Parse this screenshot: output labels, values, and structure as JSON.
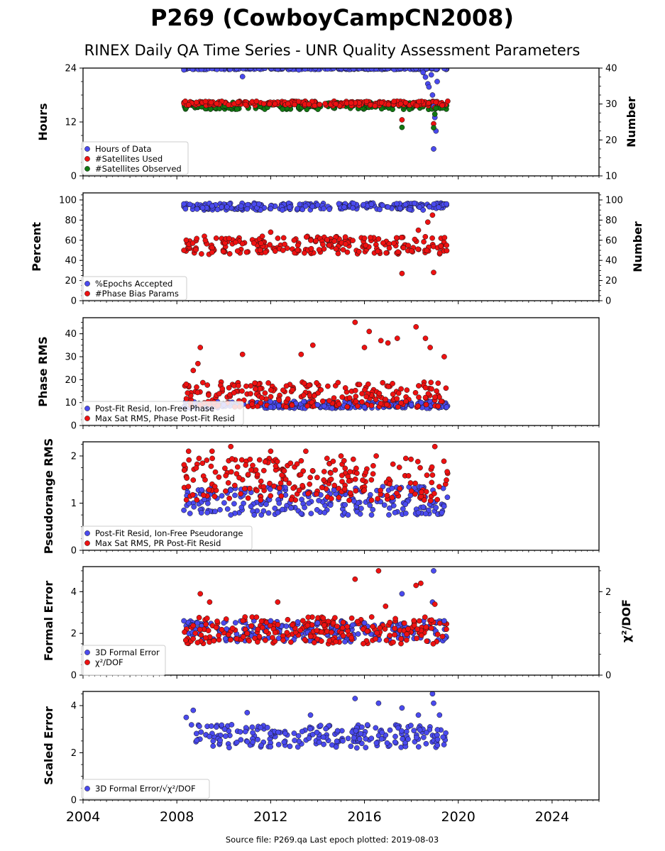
{
  "title": "P269 (CowboyCampCN2008)",
  "subtitle": "RINEX Daily QA Time Series - UNR Quality Assessment Parameters",
  "footer": "Source file: P269.qa Last epoch plotted: 2019-08-03",
  "colors": {
    "blue": "#4a4aee",
    "red": "#ee1111",
    "green": "#117711"
  },
  "x_ticks": [
    "2004",
    "2008",
    "2012",
    "2016",
    "2020",
    "2024"
  ],
  "chart_data": [
    {
      "type": "scatter",
      "ylabel": "Hours",
      "ylabel_right": "Number",
      "xlim": [
        2004,
        2026
      ],
      "ylim": [
        0,
        24
      ],
      "ylim_right": [
        10,
        40
      ],
      "yticks": [
        "0",
        "12",
        "24"
      ],
      "yticks_right": [
        "10",
        "20",
        "30",
        "40"
      ],
      "legend_position": "lower-left",
      "series": [
        {
          "name": "Hours of Data",
          "color": "blue",
          "axis": "left",
          "points": [
            [
              2008.3,
              23.6
            ],
            [
              2009.5,
              23.9
            ],
            [
              2010.8,
              22.1
            ],
            [
              2011.5,
              23.9
            ],
            [
              2013.2,
              23.6
            ],
            [
              2015.0,
              23.9
            ],
            [
              2017.0,
              23.9
            ],
            [
              2018.2,
              23.9
            ],
            [
              2018.5,
              23.0
            ],
            [
              2018.6,
              22.0
            ],
            [
              2018.7,
              20.5
            ],
            [
              2018.75,
              19.8
            ],
            [
              2018.85,
              22.5
            ],
            [
              2018.9,
              18.0
            ],
            [
              2018.95,
              15.5
            ],
            [
              2019.0,
              13.0
            ],
            [
              2019.05,
              10.0
            ],
            [
              2018.95,
              6.0
            ],
            [
              2019.1,
              21.0
            ],
            [
              2019.4,
              23.9
            ]
          ]
        },
        {
          "name": "#Satellites Used",
          "color": "red",
          "axis": "right",
          "points": [
            [
              2009.7,
              30.1
            ],
            [
              2017.6,
              25.6
            ],
            [
              2018.95,
              24.5
            ],
            [
              2019.0,
              29.0
            ],
            [
              2019.05,
              30.5
            ]
          ]
        },
        {
          "name": "#Satellites Observed",
          "color": "green",
          "axis": "right",
          "points": [
            [
              2017.6,
              23.5
            ],
            [
              2018.95,
              23.4
            ],
            [
              2019.0,
              27.2
            ],
            [
              2019.05,
              28.8
            ]
          ]
        }
      ]
    },
    {
      "type": "scatter",
      "ylabel": "Percent",
      "ylabel_right": "Number",
      "xlim": [
        2004,
        2026
      ],
      "ylim": [
        0,
        107
      ],
      "ylim_right": [
        0,
        107
      ],
      "yticks": [
        "0",
        "20",
        "40",
        "60",
        "80",
        "100"
      ],
      "yticks_right": [
        "0",
        "20",
        "40",
        "60",
        "80",
        "100"
      ],
      "legend_position": "lower-left",
      "series": [
        {
          "name": "%Epochs Accepted",
          "color": "blue",
          "axis": "left",
          "points": [
            [
              2008.3,
              96
            ],
            [
              2009.5,
              94
            ],
            [
              2011.0,
              91
            ],
            [
              2012.5,
              90
            ],
            [
              2014.0,
              95
            ],
            [
              2015.5,
              92
            ],
            [
              2017.0,
              93
            ],
            [
              2018.5,
              90
            ],
            [
              2019.5,
              96
            ]
          ]
        },
        {
          "name": "#Phase Bias Params",
          "color": "red",
          "axis": "right",
          "points": [
            [
              2008.3,
              50
            ],
            [
              2009.5,
              48
            ],
            [
              2010.5,
              58
            ],
            [
              2012.0,
              68
            ],
            [
              2013.0,
              60
            ],
            [
              2014.5,
              55
            ],
            [
              2016.0,
              62
            ],
            [
              2017.6,
              27
            ],
            [
              2018.3,
              70
            ],
            [
              2018.7,
              78
            ],
            [
              2018.9,
              85
            ],
            [
              2018.95,
              28
            ],
            [
              2019.5,
              55
            ]
          ]
        }
      ]
    },
    {
      "type": "scatter",
      "ylabel": "Phase RMS",
      "xlim": [
        2004,
        2026
      ],
      "ylim": [
        0,
        47
      ],
      "yticks": [
        "0",
        "10",
        "20",
        "30",
        "40"
      ],
      "legend_position": "lower-left",
      "series": [
        {
          "name": "Post-Fit Resid, Ion-Free Phase",
          "color": "blue",
          "points": [
            [
              2008.3,
              8
            ],
            [
              2010,
              9
            ],
            [
              2012,
              8
            ],
            [
              2014,
              9
            ],
            [
              2016,
              8
            ],
            [
              2018,
              9
            ],
            [
              2019.5,
              8
            ]
          ]
        },
        {
          "name": "Max Sat RMS, Phase Post-Fit Resid",
          "color": "red",
          "points": [
            [
              2008.4,
              18
            ],
            [
              2008.7,
              24
            ],
            [
              2008.9,
              27
            ],
            [
              2009.0,
              34
            ],
            [
              2010.8,
              31
            ],
            [
              2013.3,
              31
            ],
            [
              2013.8,
              35
            ],
            [
              2015.6,
              45
            ],
            [
              2016.0,
              34
            ],
            [
              2016.2,
              41
            ],
            [
              2016.7,
              37
            ],
            [
              2017.0,
              36
            ],
            [
              2017.4,
              38
            ],
            [
              2018.2,
              43
            ],
            [
              2018.6,
              38
            ],
            [
              2018.8,
              34
            ],
            [
              2019.4,
              30
            ]
          ]
        }
      ]
    },
    {
      "type": "scatter",
      "ylabel": "Pseudorange RMS",
      "xlim": [
        2004,
        2026
      ],
      "ylim": [
        0,
        2.3
      ],
      "yticks": [
        "0",
        "1",
        "2"
      ],
      "legend_position": "lower-left",
      "series": [
        {
          "name": "Post-Fit Resid, Ion-Free Pseudorange",
          "color": "blue",
          "points": [
            [
              2008.3,
              0.85
            ],
            [
              2009.3,
              0.8
            ],
            [
              2010.3,
              0.75
            ],
            [
              2011.3,
              0.75
            ],
            [
              2012.3,
              0.8
            ],
            [
              2013.3,
              0.78
            ],
            [
              2014.3,
              0.8
            ],
            [
              2015.3,
              0.75
            ],
            [
              2016.3,
              0.75
            ],
            [
              2017.3,
              0.8
            ],
            [
              2018.3,
              0.8
            ],
            [
              2019.3,
              0.8
            ]
          ]
        },
        {
          "name": "Max Sat RMS, PR Post-Fit Resid",
          "color": "red",
          "points": [
            [
              2008.5,
              2.1
            ],
            [
              2009.5,
              2.1
            ],
            [
              2010.3,
              2.2
            ],
            [
              2012.0,
              2.1
            ],
            [
              2013.5,
              2.1
            ],
            [
              2015.0,
              2.0
            ],
            [
              2016.5,
              2.0
            ],
            [
              2019.0,
              2.2
            ]
          ]
        }
      ]
    },
    {
      "type": "scatter",
      "ylabel": "Formal Error",
      "ylabel_right": "χ²/DOF",
      "xlim": [
        2004,
        2026
      ],
      "ylim": [
        0,
        5.2
      ],
      "ylim_right": [
        0,
        2.6
      ],
      "yticks": [
        "0",
        "2",
        "4"
      ],
      "yticks_right": [
        "0",
        "2"
      ],
      "legend_position": "lower-left",
      "series": [
        {
          "name": "3D Formal Error",
          "color": "blue",
          "axis": "left",
          "points": [
            [
              2008.3,
              2.6
            ],
            [
              2010,
              2.5
            ],
            [
              2012,
              2.6
            ],
            [
              2014,
              2.5
            ],
            [
              2016,
              2.5
            ],
            [
              2017.6,
              3.9
            ],
            [
              2018.9,
              3.5
            ],
            [
              2018.95,
              5.0
            ],
            [
              2019.4,
              2.6
            ]
          ]
        },
        {
          "name": "χ²/DOF",
          "color": "red",
          "axis": "right",
          "points": [
            [
              2009.0,
              1.95
            ],
            [
              2009.4,
              1.75
            ],
            [
              2012.3,
              1.75
            ],
            [
              2015.6,
              2.3
            ],
            [
              2016.6,
              2.5
            ],
            [
              2016.9,
              1.65
            ],
            [
              2018.2,
              2.15
            ],
            [
              2018.4,
              2.2
            ],
            [
              2019.0,
              1.7
            ]
          ]
        }
      ]
    },
    {
      "type": "scatter",
      "ylabel": "Scaled Error",
      "xlim": [
        2004,
        2026
      ],
      "ylim": [
        0,
        4.6
      ],
      "yticks": [
        "0",
        "2",
        "4"
      ],
      "legend_position": "lower-left",
      "series": [
        {
          "name": "3D Formal Error/√χ²/DOF",
          "color": "blue",
          "points": [
            [
              2008.4,
              3.5
            ],
            [
              2008.7,
              3.8
            ],
            [
              2011.0,
              3.7
            ],
            [
              2013.7,
              3.6
            ],
            [
              2015.6,
              4.3
            ],
            [
              2016.6,
              4.1
            ],
            [
              2017.6,
              3.9
            ],
            [
              2018.9,
              4.5
            ],
            [
              2018.95,
              4.1
            ],
            [
              2018.3,
              3.6
            ],
            [
              2019.2,
              3.6
            ]
          ]
        }
      ]
    }
  ]
}
